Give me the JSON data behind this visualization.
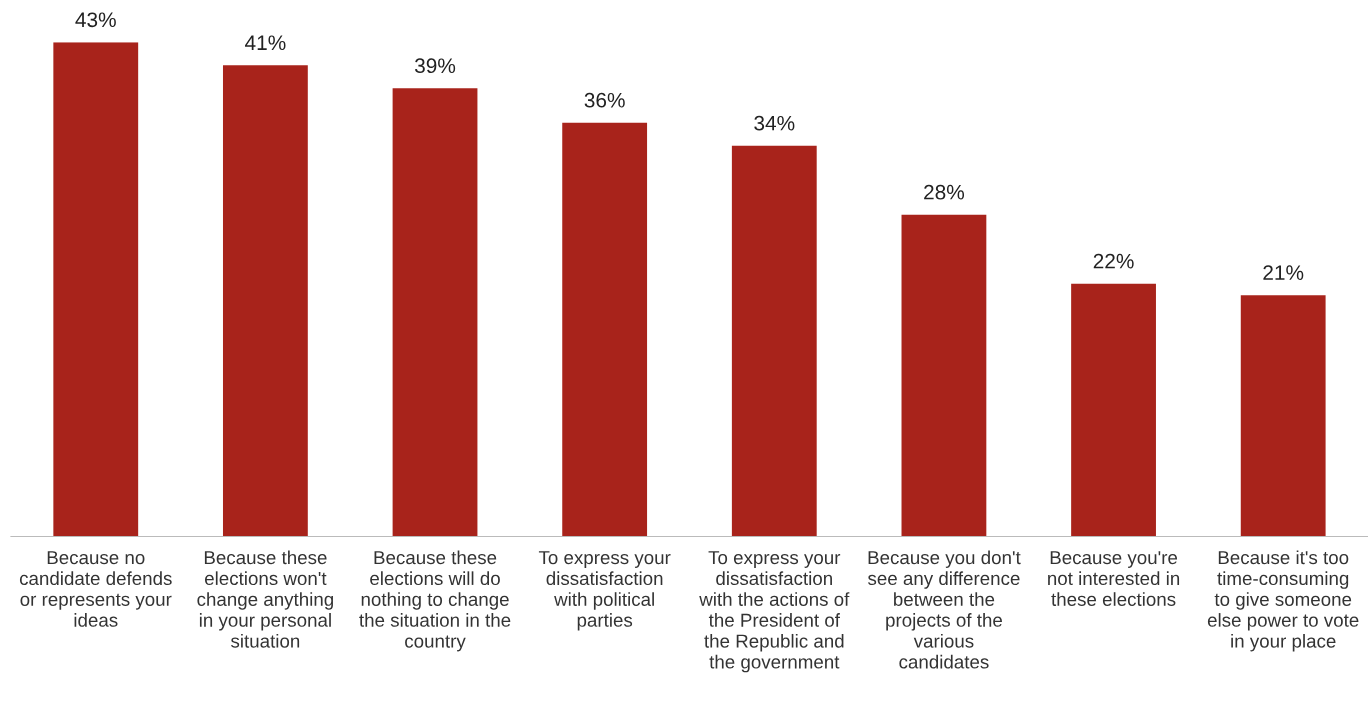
{
  "chart_data": {
    "type": "bar",
    "categories": [
      "Because no\ncandidate defends\nor represents your\nideas",
      "Because these\nelections won't\nchange anything\nin your personal\nsituation",
      "Because these\nelections will do\nnothing to change\nthe situation in the\ncountry",
      "To express your\ndissatisfaction\nwith political\nparties",
      "To express your\ndissatisfaction\nwith the actions of\nthe President of\nthe Republic and\nthe government",
      "Because you don't\nsee any difference\nbetween the\nprojects of the\nvarious\ncandidates",
      "Because you're\nnot interested in\nthese elections",
      "Because it's too\ntime-consuming\nto give someone\nelse power to vote\nin your place"
    ],
    "values": [
      43,
      41,
      39,
      36,
      34,
      28,
      22,
      21
    ],
    "value_labels": [
      "43%",
      "41%",
      "39%",
      "36%",
      "34%",
      "28%",
      "22%",
      "21%"
    ],
    "color": "#a8231b",
    "grid": false,
    "legend": false
  }
}
